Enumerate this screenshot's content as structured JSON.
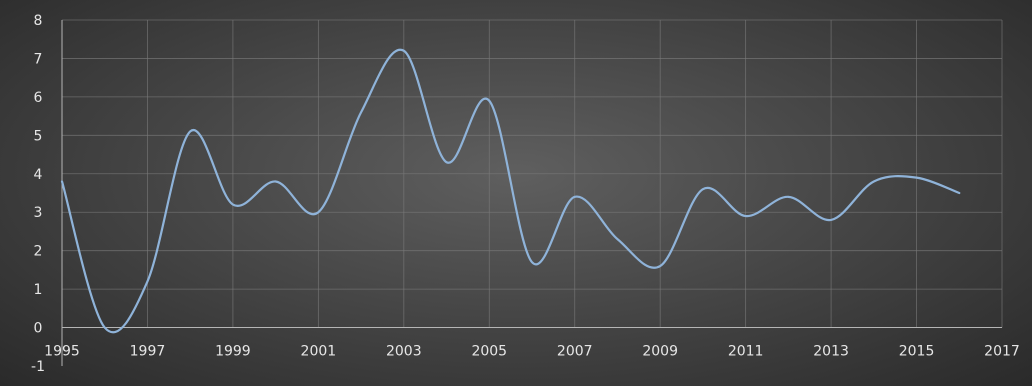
{
  "chart_data": {
    "type": "line",
    "title": "",
    "xlabel": "",
    "ylabel": "",
    "xlim": [
      1995,
      2017
    ],
    "ylim": [
      -1,
      8
    ],
    "x_ticks": [
      "1995",
      "1997",
      "1999",
      "2001",
      "2003",
      "2005",
      "2007",
      "2009",
      "2011",
      "2013",
      "2015",
      "2017"
    ],
    "y_ticks": [
      "-1",
      "0",
      "1",
      "2",
      "3",
      "4",
      "5",
      "6",
      "7",
      "8"
    ],
    "grid": true,
    "legend": "none",
    "series": [
      {
        "color": "#8fb3d9",
        "x": [
          1995,
          1996,
          1997,
          1998,
          1999,
          2000,
          2001,
          2002,
          2003,
          2004,
          2005,
          2006,
          2007,
          2008,
          2009,
          2010,
          2011,
          2012,
          2013,
          2014,
          2015,
          2016
        ],
        "y": [
          3.8,
          0.0,
          1.2,
          5.1,
          3.2,
          3.8,
          3.0,
          5.6,
          7.2,
          4.3,
          5.9,
          1.7,
          3.4,
          2.3,
          1.6,
          3.6,
          2.9,
          3.4,
          2.8,
          3.8,
          3.9,
          3.5
        ]
      }
    ]
  }
}
